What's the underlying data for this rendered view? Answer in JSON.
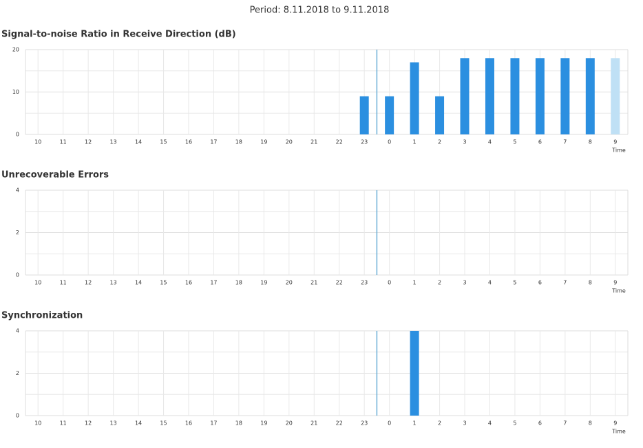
{
  "header": {
    "period": "Period: 8.11.2018 to 9.11.2018"
  },
  "chart_data": [
    {
      "type": "bar",
      "title": "Signal-to-noise Ratio in Receive Direction (dB)",
      "x_label": "Time",
      "categories": [
        "10",
        "11",
        "12",
        "13",
        "14",
        "15",
        "16",
        "17",
        "18",
        "19",
        "20",
        "21",
        "22",
        "23",
        "0",
        "1",
        "2",
        "3",
        "4",
        "5",
        "6",
        "7",
        "8",
        "9"
      ],
      "values": [
        null,
        null,
        null,
        null,
        null,
        null,
        null,
        null,
        null,
        null,
        null,
        null,
        null,
        9,
        9,
        17,
        9,
        18,
        18,
        18,
        18,
        18,
        18,
        18
      ],
      "colors": [
        "#2b8fe0",
        "#2b8fe0",
        "#2b8fe0",
        "#2b8fe0",
        "#2b8fe0",
        "#2b8fe0",
        "#2b8fe0",
        "#2b8fe0",
        "#2b8fe0",
        "#2b8fe0",
        "#2b8fe0",
        "#2b8fe0",
        "#2b8fe0",
        "#2b8fe0",
        "#2b8fe0",
        "#2b8fe0",
        "#2b8fe0",
        "#2b8fe0",
        "#2b8fe0",
        "#2b8fe0",
        "#2b8fe0",
        "#2b8fe0",
        "#2b8fe0",
        "#bfe0f5"
      ],
      "ylim": [
        0,
        20
      ],
      "yticks": [
        0,
        10,
        20
      ],
      "grid": true
    },
    {
      "type": "bar",
      "title": "Unrecoverable Errors",
      "x_label": "Time",
      "categories": [
        "10",
        "11",
        "12",
        "13",
        "14",
        "15",
        "16",
        "17",
        "18",
        "19",
        "20",
        "21",
        "22",
        "23",
        "0",
        "1",
        "2",
        "3",
        "4",
        "5",
        "6",
        "7",
        "8",
        "9"
      ],
      "values": [
        null,
        null,
        null,
        null,
        null,
        null,
        null,
        null,
        null,
        null,
        null,
        null,
        null,
        null,
        null,
        null,
        null,
        null,
        null,
        null,
        null,
        null,
        null,
        null
      ],
      "color": "#2b8fe0",
      "ylim": [
        0,
        4
      ],
      "yticks": [
        0,
        2,
        4
      ],
      "grid": true
    },
    {
      "type": "bar",
      "title": "Synchronization",
      "x_label": "Time",
      "categories": [
        "10",
        "11",
        "12",
        "13",
        "14",
        "15",
        "16",
        "17",
        "18",
        "19",
        "20",
        "21",
        "22",
        "23",
        "0",
        "1",
        "2",
        "3",
        "4",
        "5",
        "6",
        "7",
        "8",
        "9"
      ],
      "values": [
        null,
        null,
        null,
        null,
        null,
        null,
        null,
        null,
        null,
        null,
        null,
        null,
        null,
        null,
        null,
        4,
        null,
        null,
        null,
        null,
        null,
        null,
        null,
        null
      ],
      "color": "#2b8fe0",
      "ylim": [
        0,
        4
      ],
      "yticks": [
        0,
        2,
        4
      ],
      "grid": true
    }
  ]
}
